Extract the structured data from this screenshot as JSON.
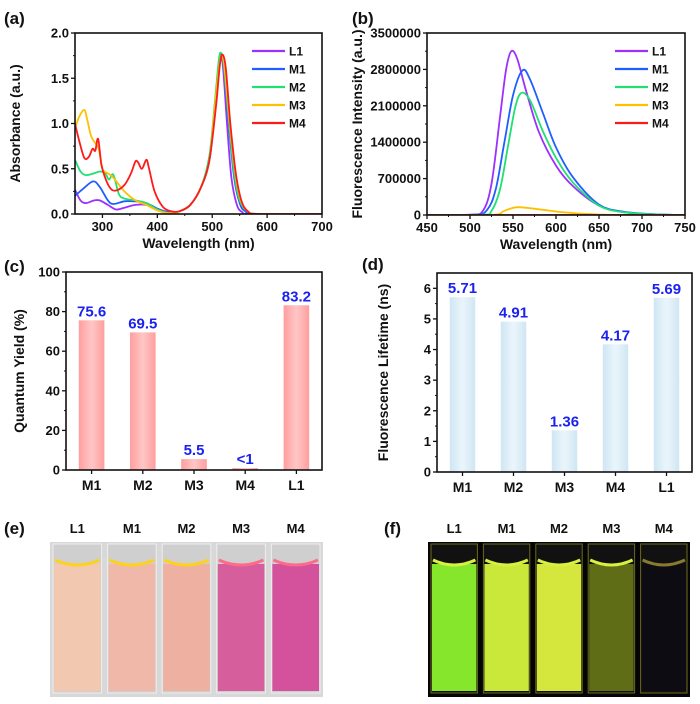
{
  "panels": {
    "a": "(a)",
    "b": "(b)",
    "c": "(c)",
    "d": "(d)",
    "e": "(e)",
    "f": "(f)"
  },
  "series_colors": {
    "L1": "#9b30ff",
    "M1": "#1f5fff",
    "M2": "#1fe070",
    "M3": "#ffc000",
    "M4": "#ff1a1a"
  },
  "chart_data": [
    {
      "type": "line",
      "xlabel": "Wavelength (nm)",
      "ylabel": "Absorbance (a.u.)",
      "xlim": [
        250,
        700
      ],
      "ylim": [
        0,
        2.0
      ],
      "xticks": [
        "300",
        "400",
        "500",
        "600",
        "700"
      ],
      "xtick_values": [
        300,
        400,
        500,
        600,
        700
      ],
      "yticks": [
        "0.0",
        "0.5",
        "1.0",
        "1.5",
        "2.0"
      ],
      "ytick_values": [
        0,
        0.5,
        1.0,
        1.5,
        2.0
      ],
      "legend": "top-right",
      "series": [
        {
          "name": "L1",
          "points": [
            [
              250,
              0.27
            ],
            [
              260,
              0.15
            ],
            [
              270,
              0.12
            ],
            [
              285,
              0.15
            ],
            [
              295,
              0.15
            ],
            [
              310,
              0.1
            ],
            [
              325,
              0.05
            ],
            [
              340,
              0.07
            ],
            [
              360,
              0.1
            ],
            [
              380,
              0.1
            ],
            [
              400,
              0.05
            ],
            [
              420,
              0.01
            ],
            [
              440,
              0.03
            ],
            [
              460,
              0.1
            ],
            [
              480,
              0.3
            ],
            [
              495,
              0.6
            ],
            [
              505,
              1.2
            ],
            [
              512,
              1.65
            ],
            [
              516,
              1.76
            ],
            [
              520,
              1.6
            ],
            [
              527,
              1.0
            ],
            [
              535,
              0.4
            ],
            [
              545,
              0.1
            ],
            [
              555,
              0.02
            ],
            [
              570,
              0
            ],
            [
              700,
              0
            ]
          ]
        },
        {
          "name": "M1",
          "points": [
            [
              250,
              0.2
            ],
            [
              265,
              0.28
            ],
            [
              283,
              0.36
            ],
            [
              295,
              0.3
            ],
            [
              310,
              0.15
            ],
            [
              320,
              0.11
            ],
            [
              340,
              0.14
            ],
            [
              360,
              0.14
            ],
            [
              380,
              0.12
            ],
            [
              400,
              0.06
            ],
            [
              420,
              0.02
            ],
            [
              440,
              0.03
            ],
            [
              460,
              0.1
            ],
            [
              480,
              0.3
            ],
            [
              495,
              0.6
            ],
            [
              505,
              1.2
            ],
            [
              512,
              1.65
            ],
            [
              517,
              1.76
            ],
            [
              522,
              1.6
            ],
            [
              530,
              1.0
            ],
            [
              540,
              0.4
            ],
            [
              550,
              0.12
            ],
            [
              560,
              0.03
            ],
            [
              580,
              0
            ],
            [
              700,
              0
            ]
          ]
        },
        {
          "name": "M2",
          "points": [
            [
              250,
              0.6
            ],
            [
              260,
              0.47
            ],
            [
              270,
              0.43
            ],
            [
              285,
              0.45
            ],
            [
              295,
              0.47
            ],
            [
              305,
              0.45
            ],
            [
              312,
              0.38
            ],
            [
              318,
              0.44
            ],
            [
              322,
              0.4
            ],
            [
              330,
              0.22
            ],
            [
              340,
              0.17
            ],
            [
              360,
              0.15
            ],
            [
              380,
              0.12
            ],
            [
              400,
              0.05
            ],
            [
              420,
              0.01
            ],
            [
              440,
              0.03
            ],
            [
              460,
              0.1
            ],
            [
              480,
              0.3
            ],
            [
              495,
              0.65
            ],
            [
              505,
              1.25
            ],
            [
              512,
              1.7
            ],
            [
              516,
              1.78
            ],
            [
              521,
              1.65
            ],
            [
              530,
              1.05
            ],
            [
              540,
              0.45
            ],
            [
              550,
              0.15
            ],
            [
              565,
              0.03
            ],
            [
              585,
              0
            ],
            [
              700,
              0
            ]
          ]
        },
        {
          "name": "M3",
          "points": [
            [
              250,
              0.95
            ],
            [
              258,
              1.08
            ],
            [
              267,
              1.15
            ],
            [
              272,
              1.05
            ],
            [
              280,
              0.85
            ],
            [
              293,
              0.72
            ],
            [
              300,
              0.5
            ],
            [
              310,
              0.45
            ],
            [
              320,
              0.4
            ],
            [
              340,
              0.25
            ],
            [
              360,
              0.15
            ],
            [
              380,
              0.1
            ],
            [
              400,
              0.04
            ],
            [
              420,
              0.01
            ],
            [
              440,
              0.03
            ],
            [
              460,
              0.1
            ],
            [
              480,
              0.3
            ],
            [
              495,
              0.6
            ],
            [
              505,
              1.2
            ],
            [
              513,
              1.65
            ],
            [
              518,
              1.75
            ],
            [
              523,
              1.6
            ],
            [
              532,
              1.0
            ],
            [
              542,
              0.45
            ],
            [
              552,
              0.15
            ],
            [
              565,
              0.03
            ],
            [
              585,
              0
            ],
            [
              700,
              0
            ]
          ]
        },
        {
          "name": "M4",
          "points": [
            [
              250,
              1.0
            ],
            [
              258,
              0.8
            ],
            [
              267,
              0.62
            ],
            [
              275,
              0.63
            ],
            [
              282,
              0.72
            ],
            [
              287,
              0.7
            ],
            [
              292,
              0.83
            ],
            [
              298,
              0.55
            ],
            [
              305,
              0.4
            ],
            [
              315,
              0.28
            ],
            [
              325,
              0.26
            ],
            [
              340,
              0.32
            ],
            [
              352,
              0.45
            ],
            [
              360,
              0.58
            ],
            [
              365,
              0.57
            ],
            [
              372,
              0.5
            ],
            [
              380,
              0.6
            ],
            [
              385,
              0.5
            ],
            [
              395,
              0.25
            ],
            [
              410,
              0.08
            ],
            [
              425,
              0.03
            ],
            [
              440,
              0.03
            ],
            [
              460,
              0.1
            ],
            [
              480,
              0.3
            ],
            [
              495,
              0.6
            ],
            [
              507,
              1.2
            ],
            [
              514,
              1.65
            ],
            [
              519,
              1.76
            ],
            [
              525,
              1.6
            ],
            [
              533,
              1.0
            ],
            [
              543,
              0.45
            ],
            [
              553,
              0.15
            ],
            [
              565,
              0.03
            ],
            [
              585,
              0
            ],
            [
              700,
              0
            ]
          ]
        }
      ]
    },
    {
      "type": "line",
      "xlabel": "Wavelength (nm)",
      "ylabel": "Fluorescence Intensity (a.u.)",
      "xlim": [
        450,
        750
      ],
      "ylim": [
        0,
        3500000
      ],
      "xticks": [
        "450",
        "500",
        "550",
        "600",
        "650",
        "700",
        "750"
      ],
      "xtick_values": [
        450,
        500,
        550,
        600,
        650,
        700,
        750
      ],
      "yticks": [
        "0",
        "700000",
        "1400000",
        "2100000",
        "2800000",
        "3500000"
      ],
      "ytick_values": [
        0,
        700000,
        1400000,
        2100000,
        2800000,
        3500000
      ],
      "legend": "top-right",
      "series": [
        {
          "name": "L1",
          "points": [
            [
              450,
              0
            ],
            [
              500,
              5000
            ],
            [
              515,
              80000
            ],
            [
              525,
              600000
            ],
            [
              535,
              1900000
            ],
            [
              542,
              2800000
            ],
            [
              548,
              3150000
            ],
            [
              555,
              3000000
            ],
            [
              565,
              2400000
            ],
            [
              580,
              1600000
            ],
            [
              600,
              950000
            ],
            [
              620,
              550000
            ],
            [
              650,
              180000
            ],
            [
              680,
              50000
            ],
            [
              720,
              10000
            ],
            [
              750,
              0
            ]
          ]
        },
        {
          "name": "M1",
          "points": [
            [
              450,
              0
            ],
            [
              505,
              5000
            ],
            [
              520,
              100000
            ],
            [
              530,
              500000
            ],
            [
              540,
              1400000
            ],
            [
              550,
              2300000
            ],
            [
              561,
              2780000
            ],
            [
              570,
              2600000
            ],
            [
              585,
              1950000
            ],
            [
              600,
              1300000
            ],
            [
              620,
              720000
            ],
            [
              650,
              200000
            ],
            [
              680,
              60000
            ],
            [
              720,
              10000
            ],
            [
              750,
              0
            ]
          ]
        },
        {
          "name": "M2",
          "points": [
            [
              450,
              0
            ],
            [
              515,
              5000
            ],
            [
              525,
              80000
            ],
            [
              535,
              500000
            ],
            [
              545,
              1400000
            ],
            [
              553,
              2100000
            ],
            [
              560,
              2350000
            ],
            [
              570,
              2200000
            ],
            [
              585,
              1600000
            ],
            [
              600,
              1100000
            ],
            [
              620,
              620000
            ],
            [
              650,
              180000
            ],
            [
              680,
              50000
            ],
            [
              720,
              10000
            ],
            [
              750,
              0
            ]
          ]
        },
        {
          "name": "M3",
          "points": [
            [
              450,
              0
            ],
            [
              525,
              0
            ],
            [
              540,
              80000
            ],
            [
              555,
              150000
            ],
            [
              580,
              110000
            ],
            [
              610,
              50000
            ],
            [
              650,
              10000
            ],
            [
              700,
              0
            ],
            [
              750,
              0
            ]
          ]
        },
        {
          "name": "M4",
          "points": [
            [
              450,
              0
            ],
            [
              550,
              0
            ],
            [
              650,
              0
            ],
            [
              750,
              0
            ]
          ]
        }
      ]
    },
    {
      "type": "bar",
      "ylabel": "Quantum Yield (%)",
      "categories": [
        "M1",
        "M2",
        "M3",
        "M4",
        "L1"
      ],
      "values": [
        75.6,
        69.5,
        5.5,
        1,
        83.2
      ],
      "data_labels": [
        "75.6",
        "69.5",
        "5.5",
        "<1",
        "83.2"
      ],
      "ylim": [
        0,
        100
      ],
      "yticks": [
        "0",
        "20",
        "40",
        "60",
        "80",
        "100"
      ],
      "ytick_values": [
        0,
        20,
        40,
        60,
        80,
        100
      ],
      "bar_color": "#ffb3b3",
      "label_color": "#1a22ee"
    },
    {
      "type": "bar",
      "ylabel": "Fluorescence Lifetime (ns)",
      "categories": [
        "M1",
        "M2",
        "M3",
        "M4",
        "L1"
      ],
      "values": [
        5.71,
        4.91,
        1.36,
        4.17,
        5.69
      ],
      "data_labels": [
        "5.71",
        "4.91",
        "1.36",
        "4.17",
        "5.69"
      ],
      "ylim": [
        0,
        6.5
      ],
      "yticks": [
        "0",
        "1",
        "2",
        "3",
        "4",
        "5",
        "6"
      ],
      "ytick_values": [
        0,
        1,
        2,
        3,
        4,
        5,
        6
      ],
      "bar_color": "#d8ecf6",
      "label_color": "#1a22ee"
    }
  ],
  "photos": {
    "e": {
      "labels": [
        "L1",
        "M1",
        "M2",
        "M3",
        "M4"
      ],
      "colors": [
        "#f2c9b0",
        "#f0b8a8",
        "#eeb0a0",
        "#d65e9c",
        "#d3529b"
      ],
      "background": "#d8d8d8"
    },
    "f": {
      "labels": [
        "L1",
        "M1",
        "M2",
        "M3",
        "M4"
      ],
      "colors": [
        "#86e62c",
        "#c9e83a",
        "#d5e63c",
        "#5f6e16",
        "#0c0c12"
      ],
      "background": "#050505"
    }
  }
}
